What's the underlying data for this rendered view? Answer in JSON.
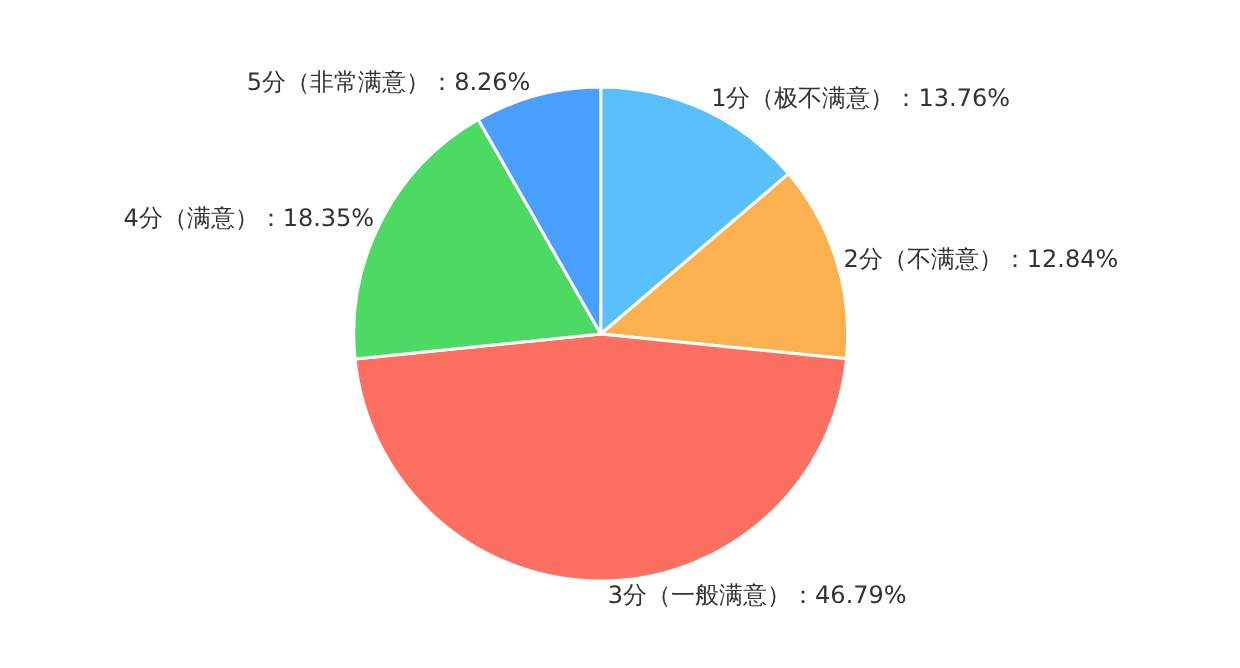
{
  "chart_data": {
    "type": "pie",
    "categories": [
      "1分（极不满意）",
      "2分（不满意）",
      "3分（一般满意）",
      "4分（满意）",
      "5分（非常满意）"
    ],
    "values": [
      13.76,
      12.84,
      46.79,
      18.35,
      8.26
    ],
    "colors": [
      "#5ac0fb",
      "#fbb14f",
      "#fd6f61",
      "#4cd964",
      "#4b9ffc"
    ],
    "value_labels": [
      "13.76%",
      "12.84%",
      "46.79%",
      "18.35%",
      "8.26%"
    ],
    "legend": false
  }
}
